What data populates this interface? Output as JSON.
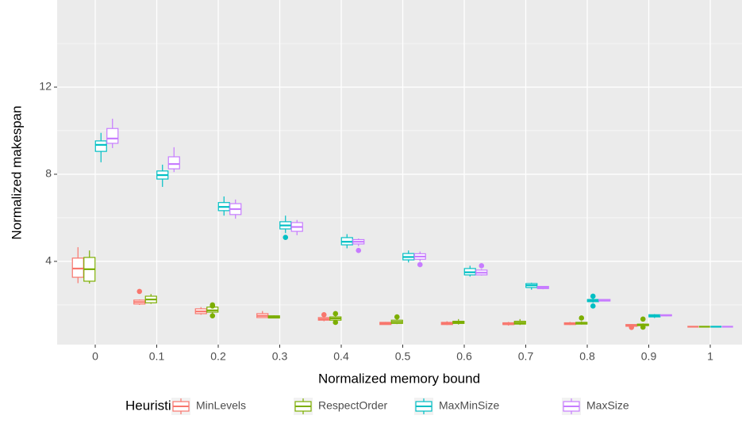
{
  "chart_data": {
    "type": "boxplot",
    "x_label": "Normalized memory bound",
    "y_label": "Normalized makespan",
    "legend_title": "Heuristic",
    "legend_position": "bottom",
    "grid": true,
    "categories": [
      "0",
      "0.1",
      "0.2",
      "0.3",
      "0.4",
      "0.5",
      "0.6",
      "0.7",
      "0.8",
      "0.9",
      "1"
    ],
    "ylim": [
      0.18,
      16
    ],
    "yticks": [
      4,
      8,
      12
    ],
    "series": [
      {
        "name": "MinLevels",
        "color": "#F8766D",
        "boxes": [
          {
            "min": 3.0,
            "q1": 3.27,
            "median": 3.67,
            "q3": 4.15,
            "max": 4.65
          },
          {
            "min": 2.0,
            "q1": 2.04,
            "median": 2.13,
            "q3": 2.22,
            "max": 2.25,
            "outliers": [
              2.62
            ]
          },
          {
            "min": 1.55,
            "q1": 1.6,
            "median": 1.7,
            "q3": 1.82,
            "max": 1.9
          },
          {
            "min": 1.4,
            "q1": 1.42,
            "median": 1.5,
            "q3": 1.6,
            "max": 1.72
          },
          {
            "min": 1.25,
            "q1": 1.3,
            "median": 1.35,
            "q3": 1.42,
            "max": 1.45,
            "outliers": [
              1.55
            ]
          },
          {
            "min": 1.1,
            "q1": 1.1,
            "median": 1.15,
            "q3": 1.2,
            "max": 1.22
          },
          {
            "min": 1.08,
            "q1": 1.1,
            "median": 1.15,
            "q3": 1.2,
            "max": 1.25
          },
          {
            "min": 1.05,
            "q1": 1.1,
            "median": 1.12,
            "q3": 1.18,
            "max": 1.22
          },
          {
            "min": 1.08,
            "q1": 1.1,
            "median": 1.14,
            "q3": 1.18,
            "max": 1.22
          },
          {
            "min": 1.0,
            "q1": 1.02,
            "median": 1.07,
            "q3": 1.1,
            "max": 1.12,
            "outliers": [
              0.97
            ]
          },
          {
            "min": 1.0,
            "q1": 1.0,
            "median": 1.0,
            "q3": 1.0,
            "max": 1.0
          }
        ]
      },
      {
        "name": "RespectOrder",
        "color": "#7CAE00",
        "boxes": [
          {
            "min": 2.98,
            "q1": 3.09,
            "median": 3.64,
            "q3": 4.18,
            "max": 4.5
          },
          {
            "min": 2.05,
            "q1": 2.1,
            "median": 2.25,
            "q3": 2.4,
            "max": 2.5
          },
          {
            "min": 1.6,
            "q1": 1.67,
            "median": 1.75,
            "q3": 1.9,
            "max": 1.92,
            "outliers": [
              1.5,
              1.95,
              2.0
            ]
          },
          {
            "min": 1.38,
            "q1": 1.4,
            "median": 1.45,
            "q3": 1.5,
            "max": 1.52
          },
          {
            "min": 1.25,
            "q1": 1.3,
            "median": 1.38,
            "q3": 1.45,
            "max": 1.5,
            "outliers": [
              1.2,
              1.6
            ]
          },
          {
            "min": 1.12,
            "q1": 1.15,
            "median": 1.22,
            "q3": 1.3,
            "max": 1.35,
            "outliers": [
              1.45
            ]
          },
          {
            "min": 1.1,
            "q1": 1.15,
            "median": 1.2,
            "q3": 1.25,
            "max": 1.35
          },
          {
            "min": 1.08,
            "q1": 1.12,
            "median": 1.18,
            "q3": 1.25,
            "max": 1.35
          },
          {
            "min": 1.1,
            "q1": 1.12,
            "median": 1.15,
            "q3": 1.2,
            "max": 1.25,
            "outliers": [
              1.4
            ]
          },
          {
            "min": 1.02,
            "q1": 1.05,
            "median": 1.08,
            "q3": 1.12,
            "max": 1.15,
            "outliers": [
              0.98,
              1.35
            ]
          },
          {
            "min": 1.0,
            "q1": 1.0,
            "median": 1.0,
            "q3": 1.0,
            "max": 1.0
          }
        ]
      },
      {
        "name": "MaxMinSize",
        "color": "#00BFC4",
        "boxes": [
          {
            "min": 8.55,
            "q1": 9.05,
            "median": 9.35,
            "q3": 9.53,
            "max": 9.9
          },
          {
            "min": 7.42,
            "q1": 7.78,
            "median": 7.96,
            "q3": 8.15,
            "max": 8.44
          },
          {
            "min": 6.1,
            "q1": 6.33,
            "median": 6.5,
            "q3": 6.7,
            "max": 6.98
          },
          {
            "min": 5.3,
            "q1": 5.49,
            "median": 5.65,
            "q3": 5.82,
            "max": 6.1,
            "outliers": [
              5.1
            ]
          },
          {
            "min": 4.6,
            "q1": 4.76,
            "median": 4.9,
            "q3": 5.09,
            "max": 5.25
          },
          {
            "min": 3.95,
            "q1": 4.07,
            "median": 4.2,
            "q3": 4.36,
            "max": 4.5
          },
          {
            "min": 3.3,
            "q1": 3.38,
            "median": 3.5,
            "q3": 3.67,
            "max": 3.8
          },
          {
            "min": 2.7,
            "q1": 2.8,
            "median": 2.9,
            "q3": 2.98,
            "max": 3.02
          },
          {
            "min": 2.1,
            "q1": 2.15,
            "median": 2.2,
            "q3": 2.25,
            "max": 2.3,
            "outliers": [
              1.95,
              2.4
            ]
          },
          {
            "min": 1.4,
            "q1": 1.45,
            "median": 1.5,
            "q3": 1.55,
            "max": 1.58
          },
          {
            "min": 1.0,
            "q1": 1.0,
            "median": 1.0,
            "q3": 1.0,
            "max": 1.0
          }
        ]
      },
      {
        "name": "MaxSize",
        "color": "#C77CFF",
        "boxes": [
          {
            "min": 9.2,
            "q1": 9.42,
            "median": 9.64,
            "q3": 10.1,
            "max": 10.55
          },
          {
            "min": 8.1,
            "q1": 8.25,
            "median": 8.47,
            "q3": 8.8,
            "max": 9.24
          },
          {
            "min": 5.96,
            "q1": 6.15,
            "median": 6.4,
            "q3": 6.65,
            "max": 6.84
          },
          {
            "min": 5.2,
            "q1": 5.38,
            "median": 5.58,
            "q3": 5.78,
            "max": 5.9
          },
          {
            "min": 4.7,
            "q1": 4.8,
            "median": 4.9,
            "q3": 5.0,
            "max": 5.05,
            "outliers": [
              4.5
            ]
          },
          {
            "min": 4.0,
            "q1": 4.1,
            "median": 4.22,
            "q3": 4.35,
            "max": 4.45,
            "outliers": [
              3.85
            ]
          },
          {
            "min": 3.35,
            "q1": 3.38,
            "median": 3.48,
            "q3": 3.6,
            "max": 3.65,
            "outliers": [
              3.8
            ]
          },
          {
            "min": 2.72,
            "q1": 2.75,
            "median": 2.8,
            "q3": 2.85,
            "max": 2.87
          },
          {
            "min": 2.16,
            "q1": 2.18,
            "median": 2.2,
            "q3": 2.25,
            "max": 2.27
          },
          {
            "min": 1.48,
            "q1": 1.5,
            "median": 1.52,
            "q3": 1.55,
            "max": 1.56
          },
          {
            "min": 1.0,
            "q1": 1.0,
            "median": 1.0,
            "q3": 1.0,
            "max": 1.0
          }
        ]
      }
    ]
  }
}
